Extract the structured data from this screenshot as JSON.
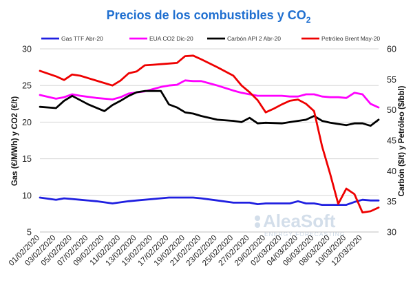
{
  "chart_data": {
    "type": "line",
    "title": {
      "main": "Precios de los combustibles y CO",
      "sub": "2"
    },
    "ylabel_left": "Gas (€/MWh) y CO2 (€/t)",
    "ylabel_right": "Carbón ($/t) y Petróleo ($/bbl)",
    "ylim_left": [
      5,
      30
    ],
    "ylim_right": [
      30,
      60
    ],
    "yticks_left": [
      "5",
      "10",
      "15",
      "20",
      "25",
      "30"
    ],
    "yticks_right": [
      "30",
      "35",
      "40",
      "45",
      "50",
      "55",
      "60"
    ],
    "grid": "horizontal",
    "legend_position": "top",
    "x_count": 43,
    "x_tick_labels": [
      "01/02/2020",
      "03/02/2020",
      "05/02/2020",
      "07/02/2020",
      "09/02/2020",
      "11/02/2020",
      "13/02/2020",
      "15/02/2020",
      "17/02/2020",
      "19/02/2020",
      "21/02/2020",
      "23/02/2020",
      "25/02/2020",
      "27/02/2020",
      "29/02/2020",
      "02/03/2020",
      "04/03/2020",
      "06/03/2020",
      "08/03/2020",
      "10/03/2020",
      "12/03/2020"
    ],
    "x_tick_index": [
      0,
      2,
      4,
      6,
      8,
      10,
      12,
      14,
      16,
      18,
      20,
      22,
      24,
      26,
      28,
      30,
      32,
      34,
      36,
      38,
      40
    ],
    "series": [
      {
        "name": "Gas TTF Abr-20",
        "axis": "left",
        "color": "#1f1fe0",
        "x": [
          0,
          2,
          3,
          4,
          5,
          7,
          9,
          11,
          12,
          14,
          16,
          18,
          19,
          20,
          22,
          24,
          25,
          26,
          27,
          28,
          29,
          30,
          31,
          32,
          33,
          34,
          35,
          36,
          37,
          38,
          39,
          40,
          41,
          42
        ],
        "values": [
          9.7,
          9.4,
          9.6,
          9.5,
          9.4,
          9.2,
          8.9,
          9.2,
          9.3,
          9.5,
          9.7,
          9.7,
          9.7,
          9.6,
          9.3,
          9.0,
          9.0,
          9.0,
          8.8,
          8.9,
          8.9,
          8.9,
          8.9,
          9.2,
          8.9,
          8.9,
          8.7,
          8.7,
          8.7,
          8.7,
          9.1,
          9.4,
          9.3,
          9.3
        ]
      },
      {
        "name": "EUA CO2 Dic-20",
        "axis": "left",
        "color": "#ff00ff",
        "x": [
          0,
          2,
          3,
          4,
          5,
          7,
          9,
          10,
          11,
          13,
          14,
          15,
          16,
          17,
          18,
          19,
          20,
          21,
          22,
          24,
          25,
          26,
          27,
          28,
          29,
          30,
          31,
          32,
          33,
          34,
          35,
          36,
          37,
          38,
          39,
          40,
          41,
          42
        ],
        "values": [
          23.7,
          23.2,
          23.4,
          23.8,
          23.6,
          23.3,
          23.1,
          23.4,
          23.9,
          24.2,
          24.5,
          24.8,
          25.0,
          25.1,
          25.7,
          25.6,
          25.6,
          25.3,
          25.0,
          24.3,
          24.0,
          23.8,
          23.6,
          23.6,
          23.6,
          23.6,
          23.5,
          23.5,
          23.8,
          23.8,
          23.5,
          23.4,
          23.4,
          23.3,
          24.0,
          23.8,
          22.5,
          22.0
        ]
      },
      {
        "name": "Carbón API 2 Abr-20",
        "axis": "right",
        "color": "#000000",
        "x": [
          0,
          2,
          3,
          4,
          6,
          8,
          9,
          10,
          11,
          12,
          13,
          15,
          16,
          17,
          18,
          19,
          20,
          22,
          24,
          25,
          26,
          27,
          28,
          30,
          31,
          32,
          33,
          34,
          35,
          36,
          37,
          38,
          39,
          40,
          41,
          42
        ],
        "values": [
          50.5,
          50.3,
          51.5,
          52.3,
          50.9,
          49.8,
          50.8,
          51.5,
          52.3,
          52.9,
          53.1,
          53.1,
          50.9,
          50.4,
          49.6,
          49.4,
          49.0,
          48.4,
          48.2,
          48.0,
          48.7,
          47.8,
          47.9,
          47.8,
          48.0,
          48.2,
          48.4,
          49.0,
          48.2,
          47.9,
          47.7,
          47.5,
          47.8,
          47.8,
          47.4,
          48.4
        ]
      },
      {
        "name": "Petróleo Brent May-20",
        "axis": "right",
        "color": "#ee0000",
        "x": [
          0,
          2,
          3,
          4,
          5,
          7,
          9,
          10,
          11,
          12,
          13,
          14,
          15,
          16,
          17,
          18,
          19,
          20,
          22,
          24,
          25,
          26,
          27,
          28,
          29,
          30,
          31,
          32,
          33,
          34,
          35,
          36,
          37,
          38,
          39,
          40,
          41,
          42
        ],
        "values": [
          56.4,
          55.5,
          54.9,
          55.8,
          55.6,
          54.8,
          54.0,
          54.8,
          56.0,
          56.3,
          57.3,
          57.4,
          57.5,
          57.6,
          57.7,
          58.8,
          58.9,
          58.3,
          57.0,
          55.6,
          54.0,
          52.9,
          51.6,
          49.6,
          50.2,
          50.9,
          51.5,
          51.7,
          51.0,
          49.8,
          44.0,
          39.5,
          34.6,
          37.1,
          36.2,
          33.2,
          33.4,
          34.0
        ]
      }
    ]
  },
  "watermark": {
    "brand": "AleaSoft",
    "tagline": "ENERGY FORECASTING"
  }
}
